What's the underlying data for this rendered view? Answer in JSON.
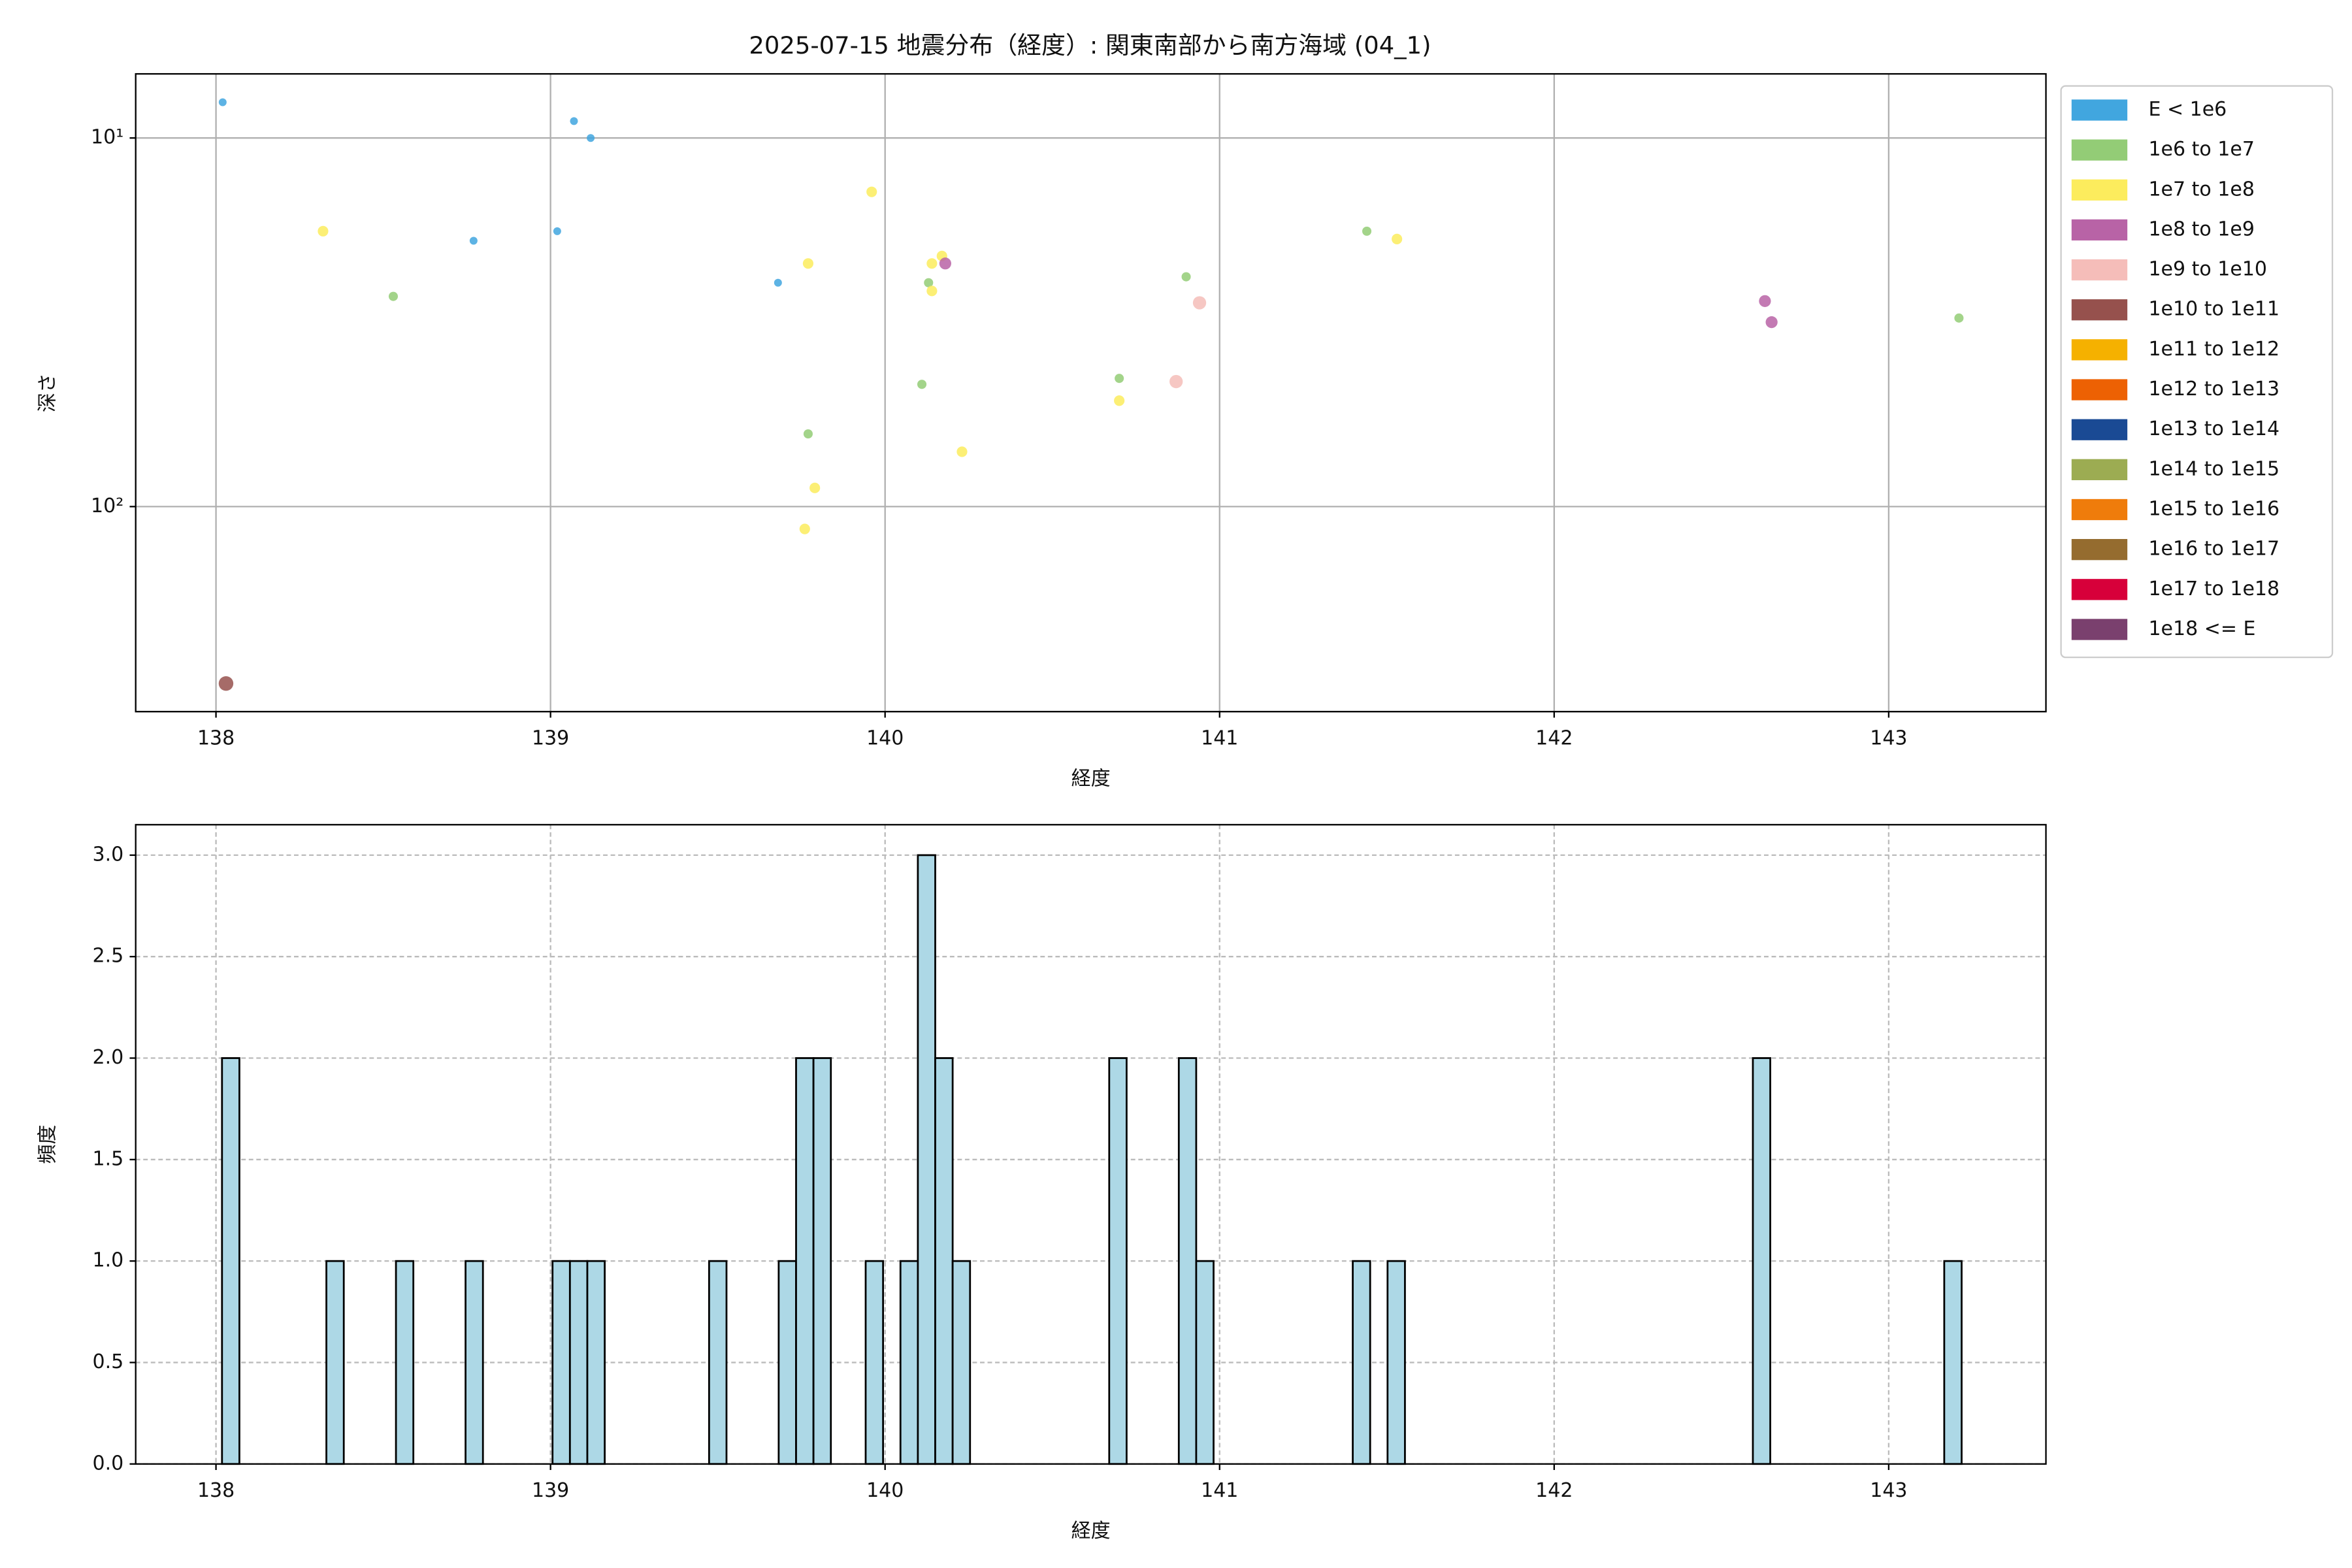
{
  "chart_data": [
    {
      "type": "scatter",
      "title": "2025-07-15 地震分布（経度）: 関東南部から南方海域 (04_1)",
      "x_label": "経度",
      "y_label": "深さ",
      "xlim": [
        137.76,
        143.47
      ],
      "xticks": [
        138,
        139,
        140,
        141,
        142,
        143
      ],
      "ylim": [
        6.7,
        360
      ],
      "y_scale": "log",
      "y_inverted": true,
      "yticks": [
        {
          "value": 10,
          "label": "10¹"
        },
        {
          "value": 100,
          "label": "10²"
        }
      ],
      "grid": true,
      "grid_linestyle": "solid",
      "legend": "outside upper right",
      "series": [
        {
          "name": "E < 1e6",
          "color": "#41a6df",
          "x": [
            138.02,
            139.07,
            139.12,
            138.77,
            139.02,
            139.68
          ],
          "y": [
            8.0,
            9.0,
            10,
            19,
            17.9,
            24.7
          ]
        },
        {
          "name": "1e6 to 1e7",
          "color": "#93cc76",
          "x": [
            138.53,
            140.13,
            140.11,
            139.77,
            140.7,
            140.9,
            141.44,
            143.21
          ],
          "y": [
            26.9,
            24.7,
            46.6,
            63.5,
            44.9,
            23.8,
            17.9,
            30.8
          ]
        },
        {
          "name": "1e7 to 1e8",
          "color": "#fcec5d",
          "x": [
            138.32,
            139.96,
            139.77,
            140.14,
            140.14,
            140.17,
            139.79,
            139.76,
            140.23,
            140.7,
            141.53
          ],
          "y": [
            17.9,
            14,
            21.9,
            26,
            21.9,
            20.9,
            89,
            115,
            71,
            51.6,
            18.8
          ]
        },
        {
          "name": "1e8 to 1e9",
          "color": "#b863a6",
          "x": [
            140.18,
            142.63,
            142.65
          ],
          "y": [
            21.9,
            27.7,
            31.6
          ]
        },
        {
          "name": "1e9 to 1e10",
          "color": "#f5bdb9",
          "x": [
            140.87,
            140.94
          ],
          "y": [
            45.8,
            28
          ]
        },
        {
          "name": "1e10 to 1e11",
          "color": "#96514d",
          "x": [
            138.03
          ],
          "y": [
            302
          ]
        },
        {
          "name": "1e11 to 1e12",
          "color": "#f5b100",
          "x": [],
          "y": []
        },
        {
          "name": "1e12 to 1e13",
          "color": "#ed6103",
          "x": [],
          "y": []
        },
        {
          "name": "1e13 to 1e14",
          "color": "#1a4a94",
          "x": [],
          "y": []
        },
        {
          "name": "1e14 to 1e15",
          "color": "#9cac52",
          "x": [],
          "y": []
        },
        {
          "name": "1e15 to 1e16",
          "color": "#ef7c0b",
          "x": [],
          "y": []
        },
        {
          "name": "1e16 to 1e17",
          "color": "#956c2f",
          "x": [],
          "y": []
        },
        {
          "name": "1e17 to 1e18",
          "color": "#d7003a",
          "x": [],
          "y": []
        },
        {
          "name": "1e18 <= E",
          "color": "#7a406e",
          "x": [],
          "y": []
        }
      ]
    },
    {
      "type": "histogram",
      "x_label": "経度",
      "y_label": "頻度",
      "color": "#add8e6",
      "edgecolor": "#000000",
      "xlim": [
        137.76,
        143.47
      ],
      "xticks": [
        138,
        139,
        140,
        141,
        142,
        143
      ],
      "ylim": [
        0,
        3.15
      ],
      "yticks": [
        {
          "value": 0,
          "label": "0.0"
        },
        {
          "value": 0.5,
          "label": "0.5"
        },
        {
          "value": 1,
          "label": "1.0"
        },
        {
          "value": 1.5,
          "label": "1.5"
        },
        {
          "value": 2,
          "label": "2.0"
        },
        {
          "value": 2.5,
          "label": "2.5"
        },
        {
          "value": 3,
          "label": "3.0"
        }
      ],
      "grid": true,
      "grid_linestyle": "dashed",
      "bins": [
        138.018,
        138.07,
        138.122,
        138.174,
        138.226,
        138.278,
        138.33,
        138.382,
        138.434,
        138.486,
        138.538,
        138.59,
        138.642,
        138.694,
        138.746,
        138.798,
        138.85,
        138.902,
        138.954,
        139.006,
        139.058,
        139.11,
        139.162,
        139.214,
        139.266,
        139.318,
        139.37,
        139.422,
        139.474,
        139.526,
        139.578,
        139.63,
        139.682,
        139.734,
        139.786,
        139.838,
        139.89,
        139.942,
        139.994,
        140.046,
        140.098,
        140.15,
        140.202,
        140.254,
        140.306,
        140.358,
        140.41,
        140.462,
        140.514,
        140.566,
        140.618,
        140.67,
        140.722,
        140.774,
        140.826,
        140.878,
        140.93,
        140.982,
        141.034,
        141.086,
        141.138,
        141.19,
        141.242,
        141.294,
        141.346,
        141.398,
        141.45,
        141.502,
        141.554,
        141.606,
        141.658,
        141.71,
        141.762,
        141.814,
        141.866,
        141.918,
        141.97,
        142.022,
        142.074,
        142.126,
        142.178,
        142.23,
        142.282,
        142.334,
        142.386,
        142.438,
        142.49,
        142.542,
        142.594,
        142.646,
        142.698,
        142.75,
        142.802,
        142.854,
        142.906,
        142.958,
        143.01,
        143.062,
        143.114,
        143.166,
        143.218
      ],
      "counts": [
        2,
        0,
        0,
        0,
        0,
        0,
        1,
        0,
        0,
        0,
        1,
        0,
        0,
        0,
        1,
        0,
        0,
        0,
        0,
        1,
        1,
        1,
        0,
        0,
        0,
        0,
        0,
        0,
        1,
        0,
        0,
        0,
        1,
        2,
        2,
        0,
        0,
        1,
        0,
        1,
        3,
        2,
        1,
        0,
        0,
        0,
        0,
        0,
        0,
        0,
        0,
        2,
        0,
        0,
        0,
        2,
        1,
        0,
        0,
        0,
        0,
        0,
        0,
        0,
        0,
        1,
        0,
        1,
        0,
        0,
        0,
        0,
        0,
        0,
        0,
        0,
        0,
        0,
        0,
        0,
        0,
        0,
        0,
        0,
        0,
        0,
        0,
        0,
        2,
        0,
        0,
        0,
        0,
        0,
        0,
        0,
        0,
        0,
        0,
        1
      ]
    }
  ]
}
